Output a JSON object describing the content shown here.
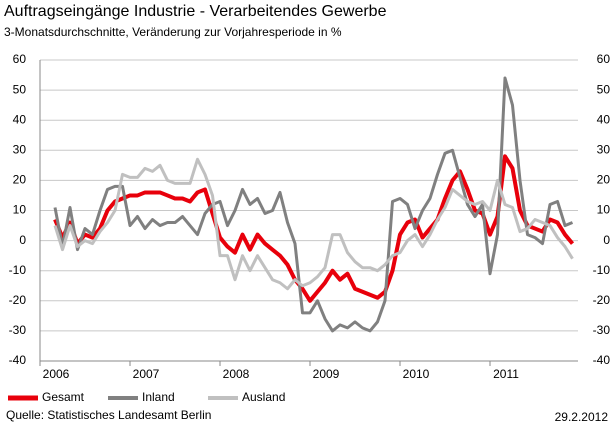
{
  "chart_data": {
    "type": "line",
    "title": "Auftragseingänge Industrie - Verarbeitendes Gewerbe",
    "subtitle": "3-Monatsdurchschnitte, Veränderung zur Vorjahresperiode in %",
    "categories": [
      "2006",
      null,
      null,
      null,
      null,
      null,
      null,
      null,
      null,
      null,
      null,
      null,
      "2007",
      null,
      null,
      null,
      null,
      null,
      null,
      null,
      null,
      null,
      null,
      null,
      "2008",
      null,
      null,
      null,
      null,
      null,
      null,
      null,
      null,
      null,
      null,
      null,
      "2009",
      null,
      null,
      null,
      null,
      null,
      null,
      null,
      null,
      null,
      null,
      null,
      "2010",
      null,
      null,
      null,
      null,
      null,
      null,
      null,
      null,
      null,
      null,
      null,
      "2011",
      null,
      null,
      null,
      null,
      null,
      null,
      null,
      null,
      null,
      null,
      null
    ],
    "series": [
      {
        "name": "Gesamt",
        "color": "#e8000b",
        "width": 4,
        "values": [
          null,
          null,
          7,
          1,
          6,
          -1,
          2,
          1,
          4,
          10,
          13,
          14,
          15,
          15,
          16,
          16,
          16,
          15,
          14,
          14,
          13,
          16,
          17,
          9,
          1,
          -2,
          -4,
          2,
          -3,
          2,
          -1,
          -3,
          -5,
          -8,
          -13,
          -16,
          -20,
          -17,
          -14,
          -10,
          -13,
          -11,
          -16,
          -17,
          -18,
          -19,
          -17,
          -10,
          2,
          6,
          7,
          1,
          4,
          7,
          14,
          20,
          23,
          17,
          10,
          9,
          2,
          8,
          28,
          24,
          10,
          5,
          4,
          3,
          7,
          6,
          2,
          -1
        ]
      },
      {
        "name": "Inland",
        "color": "#808080",
        "width": 3,
        "values": [
          null,
          null,
          11,
          -2,
          11,
          -3,
          4,
          2,
          10,
          17,
          18,
          18,
          5,
          8,
          4,
          7,
          5,
          6,
          6,
          8,
          5,
          2,
          9,
          12,
          13,
          5,
          10,
          17,
          12,
          14,
          9,
          10,
          16,
          6,
          -1,
          -24,
          -24,
          -20,
          -26,
          -30,
          -28,
          -29,
          -27,
          -29,
          -30,
          -27,
          -20,
          13,
          14,
          12,
          4,
          10,
          14,
          22,
          29,
          30,
          21,
          12,
          8,
          12,
          -11,
          2,
          54,
          45,
          20,
          2,
          1,
          -1,
          12,
          13,
          5,
          6
        ]
      },
      {
        "name": "Ausland",
        "color": "#c0c0c0",
        "width": 3,
        "values": [
          null,
          null,
          5,
          -3,
          5,
          -2,
          0,
          -1,
          3,
          6,
          10,
          22,
          21,
          21,
          24,
          23,
          25,
          20,
          19,
          19,
          19,
          27,
          22,
          15,
          -5,
          -5,
          -13,
          -5,
          -10,
          -5,
          -9,
          -13,
          -14,
          -16,
          -13,
          -15,
          -14,
          -12,
          -9,
          2,
          2,
          -4,
          -7,
          -9,
          -9,
          -10,
          -8,
          -5,
          -4,
          0,
          2,
          -2,
          2,
          7,
          11,
          17,
          15,
          13,
          12,
          13,
          10,
          20,
          12,
          11,
          3,
          4,
          7,
          6,
          5,
          1,
          -2,
          -6
        ]
      }
    ],
    "ylim": [
      -40,
      60
    ],
    "yticks": [
      -40,
      -30,
      -20,
      -10,
      0,
      10,
      20,
      30,
      40,
      50,
      60
    ],
    "y2lim": [
      -40,
      60
    ],
    "y2ticks": [
      -40,
      -30,
      -20,
      -10,
      0,
      10,
      20,
      30,
      40,
      50,
      60
    ],
    "grid": true,
    "legend": "bottom",
    "source": "Quelle: Statistisches Landesamt Berlin",
    "date": "29.2.2012"
  }
}
